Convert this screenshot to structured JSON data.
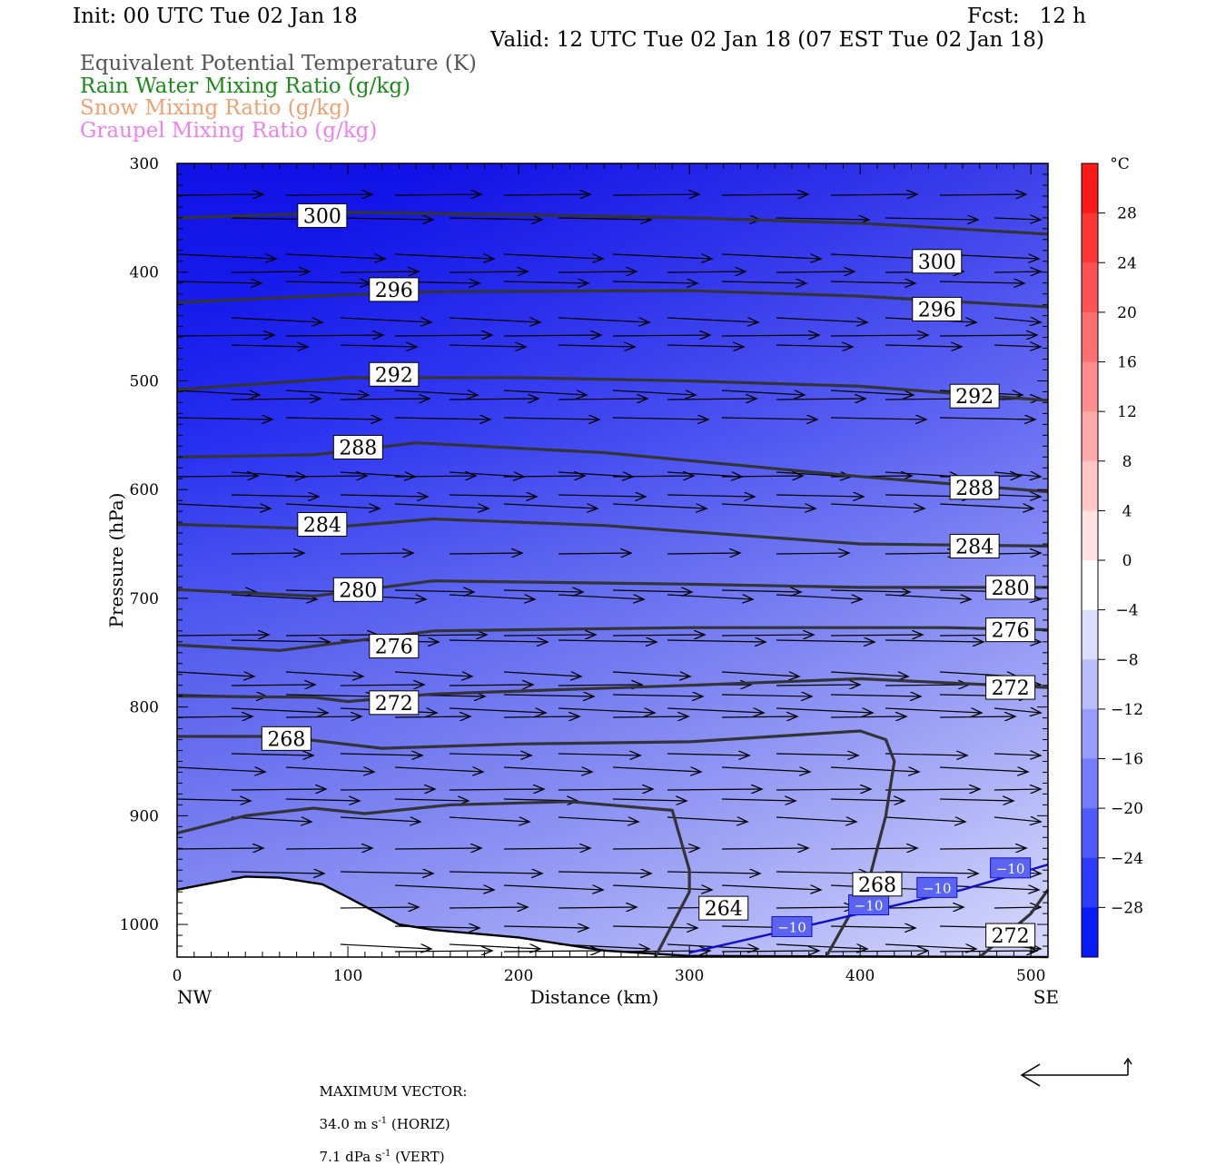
{
  "header": {
    "init": "Init: 00 UTC Tue 02 Jan 18",
    "fcst": "Fcst:   12 h",
    "valid": "Valid: 12 UTC Tue 02 Jan 18 (07 EST Tue 02 Jan 18)",
    "fields": [
      {
        "label": "Equivalent Potential Temperature (K)",
        "color": "#555555"
      },
      {
        "label": "Rain Water Mixing Ratio (g/kg)",
        "color": "#1a8a1a"
      },
      {
        "label": "Snow Mixing Ratio (g/kg)",
        "color": "#f0a070"
      },
      {
        "label": "Graupel Mixing Ratio (g/kg)",
        "color": "#f080f0"
      }
    ]
  },
  "chart_data": {
    "type": "contour",
    "xlabel": "Distance (km)",
    "ylabel": "Pressure (hPa)",
    "xlim": [
      0,
      510
    ],
    "ylim": [
      1030,
      300
    ],
    "x_ticks": [
      "0",
      "100",
      "200",
      "300",
      "400",
      "500"
    ],
    "y_ticks": [
      "300",
      "400",
      "500",
      "600",
      "700",
      "800",
      "900",
      "1000"
    ],
    "x_start_label": "NW",
    "x_end_label": "SE",
    "colorbar": {
      "unit": "°C",
      "labels": [
        "28",
        "24",
        "20",
        "16",
        "12",
        "8",
        "4",
        "0",
        "−4",
        "−8",
        "−12",
        "−16",
        "−20",
        "−24",
        "−28"
      ],
      "warm_color": "#ff1a1a",
      "cold_color": "#0a1aff",
      "zero_color": "#ffffff"
    },
    "theta_e_contours": [
      {
        "level": "300",
        "points": [
          [
            0,
            350
          ],
          [
            100,
            345
          ],
          [
            200,
            347
          ],
          [
            300,
            350
          ],
          [
            400,
            355
          ],
          [
            510,
            365
          ]
        ]
      },
      {
        "level": "296",
        "points": [
          [
            0,
            428
          ],
          [
            80,
            422
          ],
          [
            150,
            418
          ],
          [
            300,
            417
          ],
          [
            400,
            422
          ],
          [
            510,
            432
          ]
        ]
      },
      {
        "level": "292",
        "points": [
          [
            0,
            508
          ],
          [
            100,
            497
          ],
          [
            200,
            497
          ],
          [
            300,
            500
          ],
          [
            400,
            505
          ],
          [
            510,
            518
          ]
        ]
      },
      {
        "level": "288",
        "points": [
          [
            0,
            570
          ],
          [
            80,
            568
          ],
          [
            140,
            557
          ],
          [
            250,
            566
          ],
          [
            400,
            588
          ],
          [
            510,
            602
          ]
        ]
      },
      {
        "level": "284",
        "points": [
          [
            0,
            632
          ],
          [
            80,
            636
          ],
          [
            150,
            627
          ],
          [
            250,
            633
          ],
          [
            400,
            650
          ],
          [
            510,
            652
          ]
        ]
      },
      {
        "level": "280",
        "points": [
          [
            0,
            692
          ],
          [
            80,
            698
          ],
          [
            150,
            684
          ],
          [
            300,
            687
          ],
          [
            400,
            690
          ],
          [
            510,
            690
          ]
        ]
      },
      {
        "level": "276",
        "points": [
          [
            0,
            743
          ],
          [
            60,
            748
          ],
          [
            150,
            730
          ],
          [
            300,
            727
          ],
          [
            450,
            727
          ],
          [
            510,
            729
          ]
        ]
      },
      {
        "level": "272",
        "points": [
          [
            0,
            790
          ],
          [
            80,
            791
          ],
          [
            100,
            795
          ],
          [
            150,
            788
          ],
          [
            300,
            780
          ],
          [
            400,
            774
          ],
          [
            510,
            782
          ]
        ]
      },
      {
        "level": "268",
        "points": [
          [
            0,
            827
          ],
          [
            60,
            827
          ],
          [
            120,
            838
          ],
          [
            200,
            834
          ],
          [
            300,
            832
          ],
          [
            400,
            822
          ],
          [
            415,
            830
          ],
          [
            420,
            850
          ],
          [
            415,
            900
          ],
          [
            405,
            960
          ],
          [
            380,
            1030
          ]
        ]
      },
      {
        "level": "264",
        "points": [
          [
            0,
            916
          ],
          [
            40,
            900
          ],
          [
            80,
            893
          ],
          [
            110,
            898
          ],
          [
            160,
            890
          ],
          [
            230,
            887
          ],
          [
            290,
            895
          ],
          [
            300,
            950
          ],
          [
            300,
            970
          ],
          [
            290,
            1000
          ],
          [
            280,
            1030
          ]
        ]
      },
      {
        "level": "272",
        "points": [
          [
            510,
            968
          ],
          [
            500,
            990
          ],
          [
            470,
            1030
          ]
        ]
      }
    ],
    "theta_e_labels": [
      {
        "text": "300",
        "x": 85,
        "p": 348
      },
      {
        "text": "300",
        "x": 445,
        "p": 390
      },
      {
        "text": "296",
        "x": 127,
        "p": 416
      },
      {
        "text": "296",
        "x": 445,
        "p": 434
      },
      {
        "text": "292",
        "x": 127,
        "p": 494
      },
      {
        "text": "292",
        "x": 467,
        "p": 514
      },
      {
        "text": "288",
        "x": 106,
        "p": 561
      },
      {
        "text": "288",
        "x": 467,
        "p": 598
      },
      {
        "text": "284",
        "x": 85,
        "p": 632
      },
      {
        "text": "284",
        "x": 467,
        "p": 652
      },
      {
        "text": "280",
        "x": 106,
        "p": 692
      },
      {
        "text": "280",
        "x": 488,
        "p": 690
      },
      {
        "text": "276",
        "x": 127,
        "p": 744
      },
      {
        "text": "276",
        "x": 488,
        "p": 729
      },
      {
        "text": "272",
        "x": 127,
        "p": 796
      },
      {
        "text": "272",
        "x": 488,
        "p": 782
      },
      {
        "text": "268",
        "x": 64,
        "p": 829
      },
      {
        "text": "268",
        "x": 410,
        "p": 963
      },
      {
        "text": "264",
        "x": 320,
        "p": 985
      },
      {
        "text": "272",
        "x": 488,
        "p": 1010
      }
    ],
    "temperature_contour": {
      "level": "−10",
      "color": "#1010cc",
      "points": [
        [
          300,
          1026
        ],
        [
          350,
          1008
        ],
        [
          400,
          990
        ],
        [
          460,
          968
        ],
        [
          510,
          945
        ]
      ],
      "labels": [
        {
          "x": 360,
          "p": 1002
        },
        {
          "x": 405,
          "p": 982
        },
        {
          "x": 445,
          "p": 966
        },
        {
          "x": 488,
          "p": 948
        }
      ]
    },
    "terrain_surface_hPa": [
      [
        0,
        968
      ],
      [
        20,
        962
      ],
      [
        40,
        956
      ],
      [
        60,
        957
      ],
      [
        85,
        963
      ],
      [
        100,
        975
      ],
      [
        130,
        1000
      ],
      [
        150,
        1005
      ],
      [
        200,
        1012
      ],
      [
        250,
        1024
      ],
      [
        300,
        1029
      ],
      [
        510,
        1030
      ]
    ],
    "max_vector": {
      "label": "MAXIMUM VECTOR:",
      "horizontal": "34.0 m s",
      "horizontal_suffix": " (HORIZ)",
      "vertical": "7.1 dPa s",
      "vertical_suffix": " (VERT)"
    }
  }
}
